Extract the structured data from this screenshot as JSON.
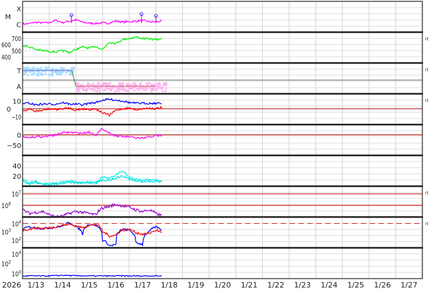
{
  "chart_data": {
    "type": "line",
    "x_axis": {
      "year_label": "2026",
      "tick_labels": [
        "1/13",
        "1/14",
        "1/15",
        "1/16",
        "1/17",
        "1/18",
        "1/19",
        "1/20",
        "1/21",
        "1/22",
        "1/23",
        "1/24",
        "1/25",
        "1/26",
        "1/27"
      ],
      "range": [
        "1/13 00:00",
        "1/28 00:00"
      ]
    },
    "x": [
      "1/13 00:00",
      "1/13 06:00",
      "1/13 12:00",
      "1/13 18:00",
      "1/14 00:00",
      "1/14 06:00",
      "1/14 12:00",
      "1/14 18:00",
      "1/15 00:00",
      "1/15 06:00",
      "1/15 12:00",
      "1/15 18:00",
      "1/16 00:00",
      "1/16 06:00",
      "1/16 12:00",
      "1/16 18:00",
      "1/17 00:00",
      "1/17 06:00",
      "1/17 12:00",
      "1/17 18:00",
      "1/18 00:00",
      "1/18 06:00"
    ],
    "grid": true,
    "panels": [
      {
        "id": "xray",
        "scale": "log",
        "ylim": [
          1e-07,
          0.0008
        ],
        "tick_labels": [
          {
            "value": 0.0001,
            "label": "X"
          },
          {
            "value": 1e-05,
            "label": "M"
          },
          {
            "value": 1e-06,
            "label": "C"
          }
        ],
        "series": [
          {
            "color": "#ff00ff",
            "values": [
              1.1e-06,
              1.2e-06,
              1.8e-06,
              1.5e-06,
              1.6e-06,
              3e-06,
              1.6e-06,
              2.5e-06,
              3.5e-06,
              1.8e-06,
              1.4e-06,
              1.3e-06,
              1.5e-06,
              1.4e-06,
              2.6e-06,
              1.9e-06,
              2.2e-06,
              2.4e-06,
              3e-06,
              2.1e-06,
              2e-06,
              2.6e-06
            ]
          }
        ],
        "flares": [
          {
            "time": "1/14 20:00",
            "value": 1.5e-05
          },
          {
            "time": "1/17 11:00",
            "value": 2e-05
          },
          {
            "time": "1/18 00:00",
            "value": 1.2e-05
          }
        ],
        "flare_marker_color": "#3333ff",
        "rt": false
      },
      {
        "id": "speed",
        "scale": "linear",
        "ylim": [
          300,
          800
        ],
        "tick_labels": [
          {
            "value": 700,
            "label": "700"
          },
          {
            "value": 600,
            "label": "600"
          },
          {
            "value": 500,
            "label": "500"
          },
          {
            "value": 400,
            "label": "400"
          }
        ],
        "series": [
          {
            "color": "#00ee00",
            "values": [
              590,
              560,
              520,
              500,
              490,
              480,
              500,
              470,
              520,
              560,
              540,
              570,
              520,
              640,
              620,
              680,
              700,
              720,
              700,
              690,
              680,
              690
            ]
          }
        ],
        "rt": true
      },
      {
        "id": "polarity",
        "scale": "category",
        "tick_labels": [
          {
            "value": "T",
            "label": "T"
          },
          {
            "value": "A",
            "label": "A"
          }
        ],
        "values": [
          "T",
          "T",
          "T",
          "T",
          "T",
          "T",
          "T",
          "T",
          "A",
          "A",
          "A",
          "A",
          "A",
          "A",
          "A",
          "A",
          "A",
          "A",
          "A",
          "A",
          "A",
          "A"
        ],
        "colors": {
          "T": "#aaddff",
          "A": "#ffb3f0",
          "line_T": "#4455dd",
          "line_A": "#cc5555"
        },
        "rt": true
      },
      {
        "id": "imf",
        "scale": "linear",
        "ylim": [
          -20,
          19
        ],
        "tick_labels": [
          {
            "value": 10,
            "label": "10"
          },
          {
            "value": 0,
            "label": "0"
          },
          {
            "value": -10,
            "label": "−10"
          }
        ],
        "reference_lines": [
          {
            "value": 0,
            "color": "#aa0000"
          }
        ],
        "series": [
          {
            "color": "#0000ff",
            "values": [
              7,
              7,
              5,
              6,
              6,
              6,
              8,
              6,
              6,
              5,
              7,
              8,
              11,
              12,
              11,
              10,
              8,
              7,
              7,
              7,
              7,
              7
            ]
          },
          {
            "color": "#ff0000",
            "values": [
              -2,
              -1,
              -3,
              -2,
              0,
              -1,
              0,
              1,
              -2,
              0,
              -1,
              0,
              -5,
              -8,
              -2,
              0,
              1,
              -1,
              0,
              1,
              0,
              2
            ]
          }
        ],
        "rt": true
      },
      {
        "id": "dst",
        "scale": "linear",
        "ylim": [
          -100,
          50
        ],
        "tick_labels": [
          {
            "value": 0,
            "label": "0"
          },
          {
            "value": -50,
            "label": "−50"
          }
        ],
        "reference_lines": [
          {
            "value": 0,
            "color": "#d07070"
          }
        ],
        "series": [
          {
            "color": "#ff00ff",
            "values": [
              -12,
              -15,
              -8,
              -10,
              -5,
              0,
              10,
              12,
              10,
              8,
              14,
              0,
              30,
              10,
              -5,
              -8,
              -10,
              -15,
              -18,
              -10,
              -5,
              -2
            ]
          }
        ],
        "rt": false
      },
      {
        "id": "cyan",
        "scale": "linear",
        "ylim": [
          0,
          60
        ],
        "tick_labels": [
          {
            "value": 40,
            "label": "40"
          },
          {
            "value": 20,
            "label": "20"
          }
        ],
        "series": [
          {
            "color": "#00eeee",
            "values": [
              14,
              6,
              10,
              5,
              5,
              6,
              8,
              10,
              8,
              7,
              9,
              8,
              18,
              15,
              22,
              30,
              18,
              14,
              12,
              14,
              12,
              10
            ]
          },
          {
            "color": "#00dddd",
            "values": [
              10,
              5,
              7,
              4,
              4,
              5,
              6,
              8,
              6,
              6,
              7,
              6,
              12,
              12,
              16,
              20,
              14,
              10,
              9,
              10,
              9,
              8
            ]
          }
        ],
        "rt": false
      },
      {
        "id": "proton",
        "scale": "log",
        "ylim": [
          100000.0,
          45000000.0
        ],
        "tick_labels": [
          {
            "value": 10000000.0,
            "label": "10",
            "exp": "7"
          },
          {
            "value": 1000000.0,
            "label": "10",
            "exp": "6"
          }
        ],
        "reference_lines": [
          {
            "value": 10000000.0,
            "color": "#cc0000"
          },
          {
            "value": 1000000.0,
            "color": "#cc0000"
          }
        ],
        "series": [
          {
            "color": "#9900cc",
            "values": [
              400000.0,
              200000.0,
              250000.0,
              300000.0,
              150000.0,
              100000.0,
              120000.0,
              200000.0,
              300000.0,
              250000.0,
              200000.0,
              150000.0,
              600000.0,
              800000.0,
              1200000.0,
              900000.0,
              700000.0,
              400000.0,
              300000.0,
              400000.0,
              200000.0,
              120000.0
            ]
          }
        ],
        "rt": true
      },
      {
        "id": "electron",
        "scale": "log",
        "ylim": [
          12,
          60000
        ],
        "tick_labels": [
          {
            "value": 10000.0,
            "label": "10",
            "exp": "4"
          },
          {
            "value": 1000.0,
            "label": "10",
            "exp": "3"
          },
          {
            "value": 100.0,
            "label": "10",
            "exp": "2"
          }
        ],
        "reference_lines": [
          {
            "value": 10000.0,
            "color": "#dd3333",
            "dashed": true
          }
        ],
        "series": [
          {
            "color": "#0000ff",
            "values": [
              2000.0,
              4000.0,
              3000.0,
              2500.0,
              3000.0,
              3500.0,
              5000.0,
              12000.0,
              4000.0,
              500.0,
              8000.0,
              6000.0,
              100.0,
              20,
              30,
              2000.0,
              1500.0,
              50,
              30,
              1000.0,
              4000.0,
              1200.0
            ]
          },
          {
            "color": "#ff0000",
            "values": [
              1500.0,
              2000.0,
              3000.0,
              2500.0,
              3000.0,
              4000.0,
              6000.0,
              8000.0,
              5000.0,
              3000.0,
              6000.0,
              8000.0,
              1000.0,
              300.0,
              400.0,
              1500.0,
              2000.0,
              800.0,
              500.0,
              600.0,
              1500.0,
              800.0
            ]
          }
        ],
        "rt": true
      },
      {
        "id": "bottom",
        "scale": "log",
        "ylim": [
          0.08,
          200000.0
        ],
        "tick_labels": [
          {
            "value": 10000.0,
            "label": "10",
            "exp": "4"
          },
          {
            "value": 100.0,
            "label": "10",
            "exp": "2"
          },
          {
            "value": 1,
            "label": "10",
            "exp": "0"
          }
        ],
        "series": [
          {
            "color": "#0000ff",
            "values": [
              0.25,
              0.3,
              0.3,
              0.28,
              0.3,
              0.32,
              0.4,
              0.35,
              0.3,
              0.32,
              0.3,
              0.28,
              0.3,
              0.28,
              0.3,
              0.3,
              0.28,
              0.3,
              0.28,
              0.3,
              0.3,
              0.28
            ]
          }
        ],
        "rt": false
      }
    ],
    "rt_label": "rt"
  }
}
